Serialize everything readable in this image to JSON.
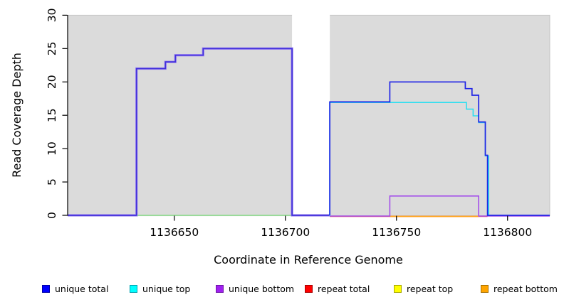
{
  "chart_data": {
    "type": "step-line",
    "title": "",
    "xlabel": "Coordinate in Reference Genome",
    "ylabel": "Read Coverage Depth",
    "x_ticks": [
      1136650,
      1136700,
      1136750,
      1136800
    ],
    "y_ticks": [
      0,
      5,
      10,
      15,
      20,
      25,
      30
    ],
    "x_range": [
      1136602,
      1136819
    ],
    "y_range": [
      0,
      30
    ],
    "grid": false,
    "legend_position": "bottom",
    "background": {
      "plot_fill": "#DBDBDB",
      "edge": "#C6C6C6",
      "gap_region": {
        "x_start": 1136703,
        "x_end": 1136720
      }
    },
    "series": [
      {
        "id": "zero-baseline-green",
        "name": "zero baseline (green)",
        "color": "#8BDF8B",
        "width": 1.5,
        "offset_y": 0,
        "points": [
          [
            1136633,
            0
          ],
          [
            1136703,
            0
          ]
        ]
      },
      {
        "id": "unique-total-left",
        "name": "unique total (left block, blue over purple)",
        "color": "#4130DA",
        "halo": "#A18AF0",
        "width": 1.7,
        "offset_y": 0,
        "points": [
          [
            1136602,
            0
          ],
          [
            1136633,
            0
          ],
          [
            1136633,
            22
          ],
          [
            1136646,
            22
          ],
          [
            1136646,
            23
          ],
          [
            1136650.5,
            23
          ],
          [
            1136650.5,
            24
          ],
          [
            1136663,
            24
          ],
          [
            1136663,
            25
          ],
          [
            1136703,
            25
          ],
          [
            1136703,
            0
          ],
          [
            1136720,
            0
          ]
        ]
      },
      {
        "id": "repeat-total",
        "name": "repeat total",
        "color": "#EE3A52",
        "width": 1.5,
        "offset_y": 1.5,
        "points": [
          [
            1136720,
            0
          ],
          [
            1136791,
            0
          ]
        ]
      },
      {
        "id": "repeat-bottom",
        "name": "repeat bottom",
        "color": "#FFA318",
        "width": 1.8,
        "offset_y": 1.5,
        "points": [
          [
            1136747,
            0
          ],
          [
            1136787,
            0
          ]
        ]
      },
      {
        "id": "unique-bottom",
        "name": "unique bottom",
        "color": "#A44FEA",
        "width": 1.6,
        "offset_y": 1,
        "points": [
          [
            1136720,
            0
          ],
          [
            1136747,
            0
          ],
          [
            1136747,
            3
          ],
          [
            1136787,
            3
          ],
          [
            1136787,
            0
          ],
          [
            1136819,
            0
          ]
        ]
      },
      {
        "id": "unique-top",
        "name": "unique top",
        "color": "#2CDEF0",
        "width": 1.6,
        "offset_y": 0.8,
        "points": [
          [
            1136720,
            0
          ],
          [
            1136720,
            17
          ],
          [
            1136781.5,
            17
          ],
          [
            1136781.5,
            16
          ],
          [
            1136784.5,
            16
          ],
          [
            1136784.5,
            15
          ],
          [
            1136787,
            15
          ],
          [
            1136787,
            14
          ],
          [
            1136790,
            14
          ],
          [
            1136790,
            9
          ],
          [
            1136791.5,
            9
          ],
          [
            1136791.5,
            0
          ]
        ]
      },
      {
        "id": "unique-total-right",
        "name": "unique total (right block)",
        "color": "#2125E6",
        "width": 1.7,
        "offset_y": 0,
        "points": [
          [
            1136720,
            0
          ],
          [
            1136720,
            17
          ],
          [
            1136747,
            17
          ],
          [
            1136747,
            20
          ],
          [
            1136781,
            20
          ],
          [
            1136781,
            19
          ],
          [
            1136784,
            19
          ],
          [
            1136784,
            18
          ],
          [
            1136787,
            18
          ],
          [
            1136787,
            14
          ],
          [
            1136790,
            14
          ],
          [
            1136790,
            9
          ],
          [
            1136791,
            9
          ],
          [
            1136791,
            0
          ],
          [
            1136819,
            0
          ]
        ]
      }
    ],
    "legend": [
      {
        "label": "unique total",
        "fill": "#0000FF",
        "border": "#0000A8"
      },
      {
        "label": "unique top",
        "fill": "#00FFFF",
        "border": "#00A0B0"
      },
      {
        "label": "unique bottom",
        "fill": "#A020F0",
        "border": "#6E14A6"
      },
      {
        "label": "repeat total",
        "fill": "#FF0000",
        "border": "#A80000"
      },
      {
        "label": "repeat top",
        "fill": "#FFFF00",
        "border": "#A8A800"
      },
      {
        "label": "repeat bottom",
        "fill": "#FFA500",
        "border": "#A87000"
      }
    ]
  }
}
